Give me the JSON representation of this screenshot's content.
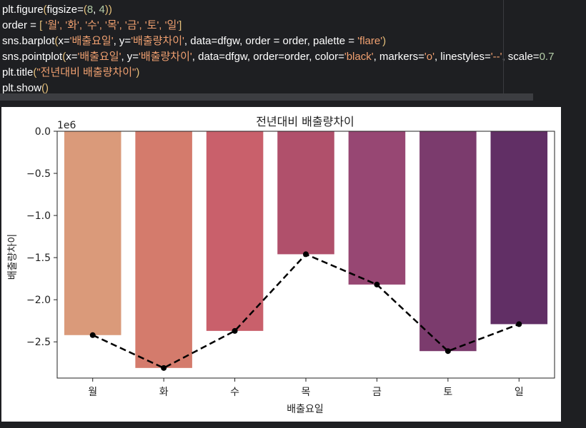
{
  "code": {
    "lines": [
      [
        {
          "t": "plt.figure",
          "c": ""
        },
        {
          "t": "(",
          "c": "y"
        },
        {
          "t": "figsize=",
          "c": ""
        },
        {
          "t": "(",
          "c": "y"
        },
        {
          "t": "8",
          "c": "n"
        },
        {
          "t": ", ",
          "c": ""
        },
        {
          "t": "4",
          "c": "n"
        },
        {
          "t": "))",
          "c": "y"
        }
      ],
      [
        {
          "t": "order = ",
          "c": ""
        },
        {
          "t": "[",
          "c": "y"
        },
        {
          "t": " '월', '화', '수', '목', '금', '토', '일'",
          "c": "s"
        },
        {
          "t": "]",
          "c": "y"
        }
      ],
      [
        {
          "t": "sns.barplot",
          "c": ""
        },
        {
          "t": "(",
          "c": "y"
        },
        {
          "t": "x=",
          "c": ""
        },
        {
          "t": "'배출요일'",
          "c": "s"
        },
        {
          "t": ", y=",
          "c": ""
        },
        {
          "t": "'배출량차이'",
          "c": "s"
        },
        {
          "t": ", data=dfgw, order = order, palette = ",
          "c": ""
        },
        {
          "t": "'flare'",
          "c": "s"
        },
        {
          "t": ")",
          "c": "y"
        }
      ],
      [
        {
          "t": "sns.pointplot",
          "c": ""
        },
        {
          "t": "(",
          "c": "y"
        },
        {
          "t": "x=",
          "c": ""
        },
        {
          "t": "'배출요일'",
          "c": "s"
        },
        {
          "t": ", y=",
          "c": ""
        },
        {
          "t": "'배출량차이'",
          "c": "s"
        },
        {
          "t": ", data=dfgw, order=order, color=",
          "c": ""
        },
        {
          "t": "'black'",
          "c": "s"
        },
        {
          "t": ", markers=",
          "c": ""
        },
        {
          "t": "'o'",
          "c": "s"
        },
        {
          "t": ", linestyles=",
          "c": ""
        },
        {
          "t": "'--'",
          "c": "s"
        },
        {
          "t": ", scale=",
          "c": ""
        },
        {
          "t": "0.7",
          "c": "n"
        }
      ],
      [
        {
          "t": "plt.title",
          "c": ""
        },
        {
          "t": "(",
          "c": "y"
        },
        {
          "t": "\"전년대비 배출량차이\"",
          "c": "s"
        },
        {
          "t": ")",
          "c": "y"
        }
      ],
      [
        {
          "t": "plt.show",
          "c": ""
        },
        {
          "t": "()",
          "c": "y"
        }
      ]
    ]
  },
  "chart_data": {
    "type": "bar",
    "title": "전년대비 배출량차이",
    "xlabel": "배출요일",
    "ylabel": "배출량차이",
    "offset_label": "1e6",
    "categories": [
      "월",
      "화",
      "수",
      "목",
      "금",
      "토",
      "일"
    ],
    "values": [
      -2.42,
      -2.81,
      -2.37,
      -1.46,
      -1.82,
      -2.61,
      -2.29
    ],
    "bar_colors": [
      "#da9a7a",
      "#d47b6c",
      "#c9606b",
      "#b0506b",
      "#974773",
      "#7b3b6d",
      "#612f65"
    ],
    "point_series": {
      "values": [
        -2.42,
        -2.81,
        -2.37,
        -1.46,
        -1.82,
        -2.61,
        -2.29
      ],
      "color": "#000000",
      "marker": "o",
      "linestyle": "--"
    },
    "ylim": [
      -2.93,
      0.0
    ],
    "yticks": [
      0.0,
      -0.5,
      -1.0,
      -1.5,
      -2.0,
      -2.5
    ],
    "ytick_labels": [
      "0.0",
      "−0.5",
      "−1.0",
      "−1.5",
      "−2.0",
      "−2.5"
    ],
    "grid": false,
    "legend": "none"
  }
}
